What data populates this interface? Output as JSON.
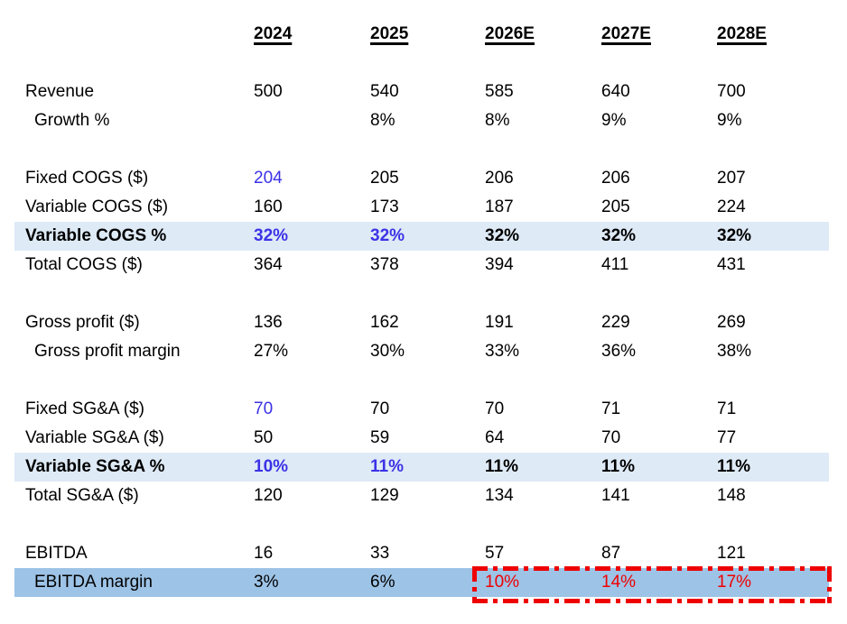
{
  "colors": {
    "highlight_light_blue": "#DEEAF6",
    "highlight_medium_blue": "#9DC3E6",
    "input_blue_text": "#3C32E6",
    "alert_red": "#EE0000",
    "default_text": "#000000",
    "background": "#FFFFFF"
  },
  "table": {
    "columns": [
      "2024",
      "2025",
      "2026E",
      "2027E",
      "2028E"
    ],
    "rows": [
      {
        "label": "Revenue",
        "values": [
          "500",
          "540",
          "585",
          "640",
          "700"
        ]
      },
      {
        "label": "Growth %",
        "values": [
          "",
          "8%",
          "8%",
          "9%",
          "9%"
        ]
      },
      {
        "label": "Fixed COGS ($)",
        "values": [
          "204",
          "205",
          "206",
          "206",
          "207"
        ]
      },
      {
        "label": "Variable COGS ($)",
        "values": [
          "160",
          "173",
          "187",
          "205",
          "224"
        ]
      },
      {
        "label": "Variable COGS %",
        "values": [
          "32%",
          "32%",
          "32%",
          "32%",
          "32%"
        ]
      },
      {
        "label": "Total COGS ($)",
        "values": [
          "364",
          "378",
          "394",
          "411",
          "431"
        ]
      },
      {
        "label": "Gross profit ($)",
        "values": [
          "136",
          "162",
          "191",
          "229",
          "269"
        ]
      },
      {
        "label": "Gross profit margin",
        "values": [
          "27%",
          "30%",
          "33%",
          "36%",
          "38%"
        ]
      },
      {
        "label": "Fixed SG&A ($)",
        "values": [
          "70",
          "70",
          "70",
          "71",
          "71"
        ]
      },
      {
        "label": "Variable SG&A ($)",
        "values": [
          "50",
          "59",
          "64",
          "70",
          "77"
        ]
      },
      {
        "label": "Variable SG&A %",
        "values": [
          "10%",
          "11%",
          "11%",
          "11%",
          "11%"
        ]
      },
      {
        "label": "Total SG&A ($)",
        "values": [
          "120",
          "129",
          "134",
          "141",
          "148"
        ]
      },
      {
        "label": "EBITDA",
        "values": [
          "16",
          "33",
          "57",
          "87",
          "121"
        ]
      },
      {
        "label": "EBITDA margin",
        "values": [
          "3%",
          "6%",
          "10%",
          "14%",
          "17%"
        ]
      }
    ]
  }
}
